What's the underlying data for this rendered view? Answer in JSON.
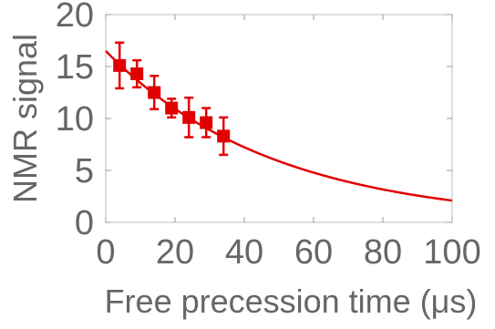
{
  "chart_data": {
    "type": "scatter",
    "xlabel": "Free precession time (μs)",
    "ylabel": "NMR signal",
    "xlim": [
      0,
      100
    ],
    "ylim": [
      0,
      20
    ],
    "x_ticks": [
      "0",
      "20",
      "40",
      "60",
      "80",
      "100"
    ],
    "y_ticks": [
      "0",
      "5",
      "10",
      "15",
      "20"
    ],
    "grid": false,
    "legend": "none",
    "colors": {
      "data": "#e00000",
      "axis_text": "#666666",
      "frame": "#bbbbbb"
    },
    "series": [
      {
        "type": "scatter_errorbar",
        "points": [
          {
            "x": 4,
            "y": 15.1,
            "err": 2.2
          },
          {
            "x": 9,
            "y": 14.3,
            "err": 1.3
          },
          {
            "x": 14,
            "y": 12.5,
            "err": 1.6
          },
          {
            "x": 19,
            "y": 11.0,
            "err": 0.9
          },
          {
            "x": 24,
            "y": 10.1,
            "err": 1.9
          },
          {
            "x": 29,
            "y": 9.6,
            "err": 1.4
          },
          {
            "x": 34,
            "y": 8.3,
            "err": 1.8
          }
        ]
      },
      {
        "type": "line",
        "model": "exponential_decay",
        "amplitude": 16.5,
        "decay_constant_us": 48.5
      }
    ]
  }
}
